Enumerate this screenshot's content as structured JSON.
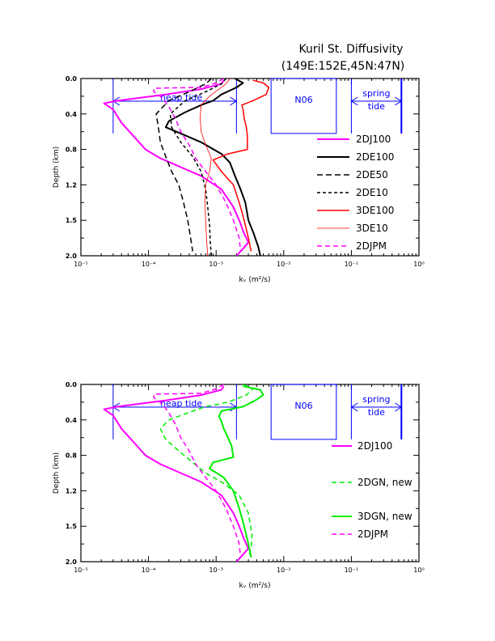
{
  "title_line1": "Kuril St. Diffusivity",
  "title_line2": "(149E:152E,45N:47N)",
  "colors": {
    "magenta": "#ff00ff",
    "black": "#000000",
    "red": "#ff0000",
    "green": "#00ee00",
    "annotation": "#0000ff"
  },
  "chart_data": [
    {
      "type": "line",
      "xscale": "log",
      "xlim": [
        1e-05,
        1
      ],
      "ylim": [
        0,
        2
      ],
      "yreversed": true,
      "x_tick_labels": [
        "10⁻⁵",
        "10⁻⁴",
        "10⁻³",
        "10⁻²",
        "10⁻¹",
        "10⁰"
      ],
      "y_tick_labels": [
        "0.0",
        "0.4",
        "0.8",
        "1.2",
        "1.5",
        "2.0"
      ],
      "xlabel": "kᵥ (m²/s)",
      "ylabel": "Depth (km)",
      "annotations": {
        "neap": "neap tide",
        "n06": "N06",
        "spring_1": "spring",
        "spring_2": "tide"
      },
      "ann_ranges": {
        "neap_x": [
          3e-05,
          0.002
        ],
        "neap_y": [
          0,
          0.62
        ],
        "n06_x": [
          0.0065,
          0.06
        ],
        "n06_y": [
          0,
          0.62
        ],
        "spring_x": [
          0.1,
          0.55
        ],
        "spring_y": [
          0,
          0.62
        ]
      },
      "series": [
        {
          "name": "2DJ100",
          "color": "#ff00ff",
          "width": 2,
          "dash": "",
          "points": [
            [
              0.0013,
              0.02
            ],
            [
              0.0012,
              0.06
            ],
            [
              0.0006,
              0.12
            ],
            [
              0.00018,
              0.18
            ],
            [
              3.5e-05,
              0.25
            ],
            [
              2.2e-05,
              0.28
            ],
            [
              3e-05,
              0.35
            ],
            [
              4e-05,
              0.5
            ],
            [
              6e-05,
              0.65
            ],
            [
              9e-05,
              0.8
            ],
            [
              0.00015,
              0.9
            ],
            [
              0.0003,
              1.0
            ],
            [
              0.0006,
              1.1
            ],
            [
              0.0012,
              1.25
            ],
            [
              0.0018,
              1.45
            ],
            [
              0.0022,
              1.6
            ],
            [
              0.0026,
              1.75
            ],
            [
              0.003,
              1.85
            ],
            [
              0.0025,
              1.92
            ],
            [
              0.002,
              2.0
            ]
          ]
        },
        {
          "name": "2DE100",
          "color": "#000000",
          "width": 2,
          "dash": "",
          "points": [
            [
              0.0019,
              0.0
            ],
            [
              0.0025,
              0.05
            ],
            [
              0.002,
              0.1
            ],
            [
              0.0012,
              0.18
            ],
            [
              0.0009,
              0.25
            ],
            [
              0.0006,
              0.3
            ],
            [
              0.00035,
              0.38
            ],
            [
              0.0002,
              0.48
            ],
            [
              0.00018,
              0.55
            ],
            [
              0.0003,
              0.62
            ],
            [
              0.0006,
              0.72
            ],
            [
              0.0012,
              0.85
            ],
            [
              0.0016,
              0.95
            ],
            [
              0.0019,
              1.1
            ],
            [
              0.0023,
              1.25
            ],
            [
              0.0027,
              1.4
            ],
            [
              0.003,
              1.6
            ],
            [
              0.0036,
              1.75
            ],
            [
              0.0042,
              1.9
            ],
            [
              0.0045,
              2.0
            ]
          ]
        },
        {
          "name": "2DE50",
          "color": "#000000",
          "width": 1.5,
          "dash": "7,4",
          "points": [
            [
              0.00085,
              0.0
            ],
            [
              0.0007,
              0.06
            ],
            [
              0.0004,
              0.15
            ],
            [
              0.0002,
              0.25
            ],
            [
              0.00013,
              0.4
            ],
            [
              0.00014,
              0.55
            ],
            [
              0.00015,
              0.72
            ],
            [
              0.00018,
              0.88
            ],
            [
              0.00022,
              1.05
            ],
            [
              0.00028,
              1.2
            ],
            [
              0.00033,
              1.4
            ],
            [
              0.00038,
              1.6
            ],
            [
              0.00042,
              1.8
            ],
            [
              0.00045,
              1.95
            ]
          ]
        },
        {
          "name": "2DE10",
          "color": "#000000",
          "width": 1.5,
          "dash": "4,3",
          "points": [
            [
              0.0014,
              0.0
            ],
            [
              0.0012,
              0.06
            ],
            [
              0.0007,
              0.15
            ],
            [
              0.00035,
              0.25
            ],
            [
              0.00021,
              0.4
            ],
            [
              0.00022,
              0.55
            ],
            [
              0.0003,
              0.72
            ],
            [
              0.00045,
              0.88
            ],
            [
              0.0006,
              1.05
            ],
            [
              0.0007,
              1.25
            ],
            [
              0.00075,
              1.45
            ],
            [
              0.0008,
              1.65
            ],
            [
              0.00082,
              1.85
            ],
            [
              0.00085,
              2.0
            ]
          ]
        },
        {
          "name": "3DE100",
          "color": "#ff0000",
          "width": 1.5,
          "dash": "",
          "points": [
            [
              0.0035,
              0.02
            ],
            [
              0.005,
              0.05
            ],
            [
              0.006,
              0.1
            ],
            [
              0.0055,
              0.18
            ],
            [
              0.0035,
              0.25
            ],
            [
              0.0024,
              0.3
            ],
            [
              0.0025,
              0.35
            ],
            [
              0.0026,
              0.45
            ],
            [
              0.0028,
              0.55
            ],
            [
              0.0029,
              0.65
            ],
            [
              0.0029,
              0.8
            ],
            [
              0.0015,
              0.85
            ],
            [
              0.0009,
              0.92
            ],
            [
              0.0012,
              1.05
            ],
            [
              0.0018,
              1.2
            ],
            [
              0.0022,
              1.4
            ],
            [
              0.0026,
              1.6
            ],
            [
              0.003,
              1.8
            ],
            [
              0.0033,
              1.95
            ]
          ]
        },
        {
          "name": "3DE10",
          "color": "#ff0000",
          "width": 0.8,
          "dash": "",
          "points": [
            [
              0.0016,
              0.0
            ],
            [
              0.0014,
              0.06
            ],
            [
              0.0011,
              0.12
            ],
            [
              0.0008,
              0.2
            ],
            [
              0.0006,
              0.3
            ],
            [
              0.00058,
              0.45
            ],
            [
              0.0006,
              0.6
            ],
            [
              0.0007,
              0.75
            ],
            [
              0.00085,
              0.9
            ],
            [
              0.0008,
              1.05
            ],
            [
              0.0007,
              1.2
            ],
            [
              0.00068,
              1.4
            ],
            [
              0.0007,
              1.6
            ],
            [
              0.00072,
              1.8
            ],
            [
              0.00075,
              2.0
            ]
          ]
        },
        {
          "name": "2DJPM",
          "color": "#ff00ff",
          "width": 1.5,
          "dash": "6,4",
          "points": [
            [
              0.0013,
              0.0
            ],
            [
              0.001,
              0.05
            ],
            [
              0.0006,
              0.1
            ],
            [
              0.00012,
              0.11
            ],
            [
              0.00012,
              0.15
            ],
            [
              0.00016,
              0.22
            ],
            [
              0.0002,
              0.32
            ],
            [
              0.00025,
              0.45
            ],
            [
              0.0003,
              0.6
            ],
            [
              0.0004,
              0.75
            ],
            [
              0.0005,
              0.9
            ],
            [
              0.0007,
              1.05
            ],
            [
              0.001,
              1.2
            ],
            [
              0.0014,
              1.4
            ],
            [
              0.0018,
              1.6
            ],
            [
              0.0022,
              1.8
            ],
            [
              0.0023,
              1.95
            ]
          ]
        }
      ]
    },
    {
      "type": "line",
      "xscale": "log",
      "xlim": [
        1e-05,
        1
      ],
      "ylim": [
        0,
        2
      ],
      "yreversed": true,
      "x_tick_labels": [
        "10⁻⁵",
        "10⁻⁴",
        "10⁻³",
        "10⁻²",
        "10⁻¹",
        "10⁰"
      ],
      "y_tick_labels": [
        "0.0",
        "0.4",
        "0.8",
        "1.2",
        "1.5",
        "2.0"
      ],
      "xlabel": "kᵥ (m²/s)",
      "ylabel": "Depth (km)",
      "annotations": {
        "neap": "neap tide",
        "n06": "N06",
        "spring_1": "spring",
        "spring_2": "tide"
      },
      "ann_ranges": {
        "neap_x": [
          3e-05,
          0.002
        ],
        "neap_y": [
          0,
          0.62
        ],
        "n06_x": [
          0.0065,
          0.06
        ],
        "n06_y": [
          0,
          0.62
        ],
        "spring_x": [
          0.1,
          0.55
        ],
        "spring_y": [
          0,
          0.62
        ]
      },
      "series": [
        {
          "name": "2DJ100",
          "color": "#ff00ff",
          "width": 2,
          "dash": "",
          "points": [
            [
              0.0013,
              0.02
            ],
            [
              0.0012,
              0.06
            ],
            [
              0.0006,
              0.12
            ],
            [
              0.00018,
              0.18
            ],
            [
              3.5e-05,
              0.25
            ],
            [
              2.2e-05,
              0.28
            ],
            [
              3e-05,
              0.35
            ],
            [
              4e-05,
              0.5
            ],
            [
              6e-05,
              0.65
            ],
            [
              9e-05,
              0.8
            ],
            [
              0.00015,
              0.9
            ],
            [
              0.0003,
              1.0
            ],
            [
              0.0006,
              1.1
            ],
            [
              0.0012,
              1.25
            ],
            [
              0.0018,
              1.45
            ],
            [
              0.0022,
              1.6
            ],
            [
              0.0026,
              1.75
            ],
            [
              0.003,
              1.85
            ],
            [
              0.0025,
              1.92
            ],
            [
              0.002,
              2.0
            ]
          ]
        },
        {
          "name": "2DGN, new",
          "color": "#00ee00",
          "width": 1.5,
          "dash": "6,4",
          "points": [
            [
              0.0025,
              0.0
            ],
            [
              0.0035,
              0.05
            ],
            [
              0.0028,
              0.12
            ],
            [
              0.0015,
              0.2
            ],
            [
              0.0007,
              0.25
            ],
            [
              0.00045,
              0.3
            ],
            [
              0.0002,
              0.4
            ],
            [
              0.00015,
              0.5
            ],
            [
              0.00018,
              0.62
            ],
            [
              0.00028,
              0.75
            ],
            [
              0.00045,
              0.88
            ],
            [
              0.0007,
              1.0
            ],
            [
              0.0012,
              1.1
            ],
            [
              0.0022,
              1.25
            ],
            [
              0.003,
              1.45
            ],
            [
              0.0034,
              1.7
            ],
            [
              0.0033,
              1.85
            ],
            [
              0.003,
              1.95
            ]
          ]
        },
        {
          "name": "3DGN, new",
          "color": "#00ee00",
          "width": 2,
          "dash": "",
          "points": [
            [
              0.0025,
              0.02
            ],
            [
              0.0045,
              0.06
            ],
            [
              0.005,
              0.12
            ],
            [
              0.0038,
              0.18
            ],
            [
              0.0025,
              0.25
            ],
            [
              0.0012,
              0.3
            ],
            [
              0.0011,
              0.36
            ],
            [
              0.0012,
              0.42
            ],
            [
              0.0013,
              0.5
            ],
            [
              0.0015,
              0.6
            ],
            [
              0.0017,
              0.7
            ],
            [
              0.0018,
              0.82
            ],
            [
              0.0009,
              0.88
            ],
            [
              0.0008,
              0.95
            ],
            [
              0.0013,
              1.05
            ],
            [
              0.0018,
              1.2
            ],
            [
              0.0022,
              1.4
            ],
            [
              0.0026,
              1.6
            ],
            [
              0.003,
              1.8
            ],
            [
              0.0033,
              1.95
            ]
          ]
        },
        {
          "name": "2DJPM",
          "color": "#ff00ff",
          "width": 1.5,
          "dash": "6,4",
          "points": [
            [
              0.0013,
              0.0
            ],
            [
              0.001,
              0.05
            ],
            [
              0.0006,
              0.1
            ],
            [
              0.00012,
              0.11
            ],
            [
              0.00012,
              0.15
            ],
            [
              0.00016,
              0.22
            ],
            [
              0.0002,
              0.32
            ],
            [
              0.00025,
              0.45
            ],
            [
              0.0003,
              0.6
            ],
            [
              0.0004,
              0.75
            ],
            [
              0.0005,
              0.9
            ],
            [
              0.0007,
              1.05
            ],
            [
              0.001,
              1.2
            ],
            [
              0.0014,
              1.4
            ],
            [
              0.0018,
              1.6
            ],
            [
              0.0022,
              1.8
            ],
            [
              0.0023,
              1.95
            ]
          ]
        }
      ]
    }
  ]
}
